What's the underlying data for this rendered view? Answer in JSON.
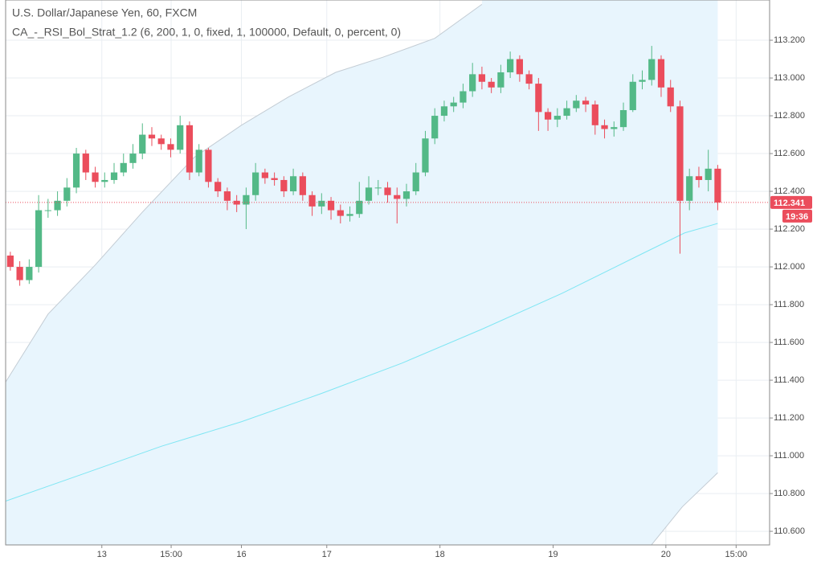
{
  "chart_data": {
    "type": "candlestick",
    "title": "U.S. Dollar/Japanese Yen, 60, FXCM",
    "subtitle": "CA_-_RSI_Bol_Strat_1.2 (6, 200, 1, 0, fixed, 1, 100000, Default, 0, percent, 0)",
    "up_color": "#53b987",
    "down_color": "#eb4d5c",
    "x": [
      1,
      3,
      5,
      7,
      9,
      11,
      13,
      15,
      17,
      19,
      21,
      23,
      25,
      27,
      29,
      31,
      33,
      35,
      37,
      39,
      41,
      43,
      45,
      47,
      49,
      51,
      53,
      55,
      57,
      59,
      61,
      63,
      65,
      67,
      69,
      71,
      73,
      75,
      77,
      79,
      81,
      83,
      85,
      87,
      89,
      91,
      93,
      95,
      97,
      99,
      101,
      103,
      105,
      107,
      109,
      111,
      113,
      115,
      117,
      119,
      121,
      123,
      125,
      127,
      129,
      131,
      133,
      135,
      137,
      139,
      141,
      143,
      145,
      147,
      149,
      151
    ],
    "open": [
      112.06,
      112.0,
      111.93,
      112.0,
      112.3,
      112.3,
      112.35,
      112.42,
      112.6,
      112.5,
      112.45,
      112.46,
      112.5,
      112.55,
      112.6,
      112.7,
      112.68,
      112.65,
      112.62,
      112.75,
      112.5,
      112.62,
      112.45,
      112.4,
      112.35,
      112.33,
      112.38,
      112.5,
      112.47,
      112.46,
      112.4,
      112.48,
      112.38,
      112.32,
      112.35,
      112.3,
      112.27,
      112.28,
      112.35,
      112.42,
      112.42,
      112.38,
      112.36,
      112.4,
      112.5,
      112.68,
      112.8,
      112.85,
      112.87,
      112.93,
      113.02,
      112.98,
      112.95,
      113.03,
      113.1,
      113.02,
      112.97,
      112.82,
      112.78,
      112.8,
      112.84,
      112.88,
      112.86,
      112.75,
      112.73,
      112.74,
      112.83,
      112.98,
      112.99,
      113.1,
      112.95,
      112.85,
      112.35,
      112.48,
      112.46,
      112.52
    ],
    "high": [
      112.08,
      112.03,
      112.04,
      112.38,
      112.36,
      112.4,
      112.47,
      112.63,
      112.62,
      112.53,
      112.5,
      112.55,
      112.6,
      112.65,
      112.76,
      112.74,
      112.7,
      112.68,
      112.8,
      112.77,
      112.65,
      112.63,
      112.47,
      112.42,
      112.38,
      112.42,
      112.55,
      112.52,
      112.5,
      112.48,
      112.52,
      112.5,
      112.4,
      112.39,
      112.37,
      112.33,
      112.32,
      112.45,
      112.48,
      112.46,
      112.45,
      112.42,
      112.44,
      112.55,
      112.72,
      112.84,
      112.88,
      112.9,
      112.97,
      113.08,
      113.06,
      113.0,
      113.07,
      113.14,
      113.12,
      113.04,
      113.0,
      112.84,
      112.84,
      112.88,
      112.91,
      112.9,
      112.88,
      112.78,
      112.77,
      112.87,
      113.02,
      113.04,
      113.17,
      113.12,
      112.99,
      112.88,
      112.52,
      112.53,
      112.62,
      112.54
    ],
    "low": [
      111.98,
      111.9,
      111.91,
      111.97,
      112.26,
      112.27,
      112.32,
      112.39,
      112.46,
      112.42,
      112.42,
      112.44,
      112.48,
      112.52,
      112.57,
      112.64,
      112.62,
      112.58,
      112.6,
      112.46,
      112.48,
      112.42,
      112.37,
      112.3,
      112.29,
      112.2,
      112.35,
      112.44,
      112.43,
      112.37,
      112.38,
      112.35,
      112.27,
      112.28,
      112.25,
      112.23,
      112.24,
      112.26,
      112.33,
      112.38,
      112.34,
      112.23,
      112.32,
      112.38,
      112.48,
      112.65,
      112.77,
      112.82,
      112.84,
      112.9,
      112.94,
      112.92,
      112.92,
      113.0,
      112.98,
      112.94,
      112.72,
      112.72,
      112.74,
      112.78,
      112.82,
      112.82,
      112.7,
      112.68,
      112.69,
      112.72,
      112.82,
      112.94,
      112.96,
      112.9,
      112.82,
      112.07,
      112.3,
      112.42,
      112.4,
      112.3
    ],
    "close": [
      112.0,
      111.93,
      112.0,
      112.3,
      112.3,
      112.35,
      112.42,
      112.6,
      112.5,
      112.45,
      112.46,
      112.5,
      112.55,
      112.6,
      112.7,
      112.68,
      112.65,
      112.62,
      112.75,
      112.5,
      112.62,
      112.45,
      112.4,
      112.35,
      112.33,
      112.38,
      112.5,
      112.47,
      112.46,
      112.4,
      112.48,
      112.38,
      112.32,
      112.35,
      112.3,
      112.27,
      112.28,
      112.35,
      112.42,
      112.42,
      112.38,
      112.36,
      112.4,
      112.5,
      112.68,
      112.8,
      112.85,
      112.87,
      112.93,
      113.02,
      112.98,
      112.95,
      113.03,
      113.1,
      113.02,
      112.97,
      112.82,
      112.78,
      112.8,
      112.84,
      112.88,
      112.86,
      112.75,
      112.73,
      112.74,
      112.83,
      112.98,
      112.99,
      113.1,
      112.95,
      112.85,
      112.35,
      112.48,
      112.46,
      112.52,
      112.341
    ],
    "bands": {
      "fill_color": "#e8f5fd",
      "edge_color": "#c3ccd4",
      "basis_color": "#7fe6f3",
      "upper": {
        "x": [
          0,
          9,
          19,
          29,
          40,
          50,
          60,
          70,
          80,
          91,
          101
        ],
        "values": [
          111.39,
          111.75,
          112.01,
          112.29,
          112.58,
          112.75,
          112.9,
          113.03,
          113.11,
          113.21,
          113.39
        ]
      },
      "lower": {
        "x": [
          137,
          143.5,
          151
        ],
        "values": [
          110.53,
          110.73,
          110.91
        ]
      },
      "basis": {
        "x": [
          0,
          16,
          33,
          50,
          67,
          84,
          101,
          118,
          135,
          144,
          151
        ],
        "values": [
          110.76,
          110.9,
          111.05,
          111.18,
          111.33,
          111.49,
          111.67,
          111.86,
          112.07,
          112.18,
          112.23
        ]
      }
    },
    "last_price": 112.341,
    "countdown": "19:36",
    "xlim": [
      0,
      162
    ],
    "xticks": [
      {
        "value": 20.4,
        "label": "13"
      },
      {
        "value": 35.1,
        "label": "15:00"
      },
      {
        "value": 50,
        "label": "16"
      },
      {
        "value": 68.1,
        "label": "17"
      },
      {
        "value": 92.1,
        "label": "18"
      },
      {
        "value": 116.1,
        "label": "19"
      },
      {
        "value": 140,
        "label": "20"
      },
      {
        "value": 154.9,
        "label": "15:00"
      }
    ],
    "ylim": [
      110.528,
      113.413
    ],
    "yticks": [
      {
        "value": 110.6,
        "label": "110.600"
      },
      {
        "value": 110.8,
        "label": "110.800"
      },
      {
        "value": 111.0,
        "label": "111.000"
      },
      {
        "value": 111.2,
        "label": "111.200"
      },
      {
        "value": 111.4,
        "label": "111.400"
      },
      {
        "value": 111.6,
        "label": "111.600"
      },
      {
        "value": 111.8,
        "label": "111.800"
      },
      {
        "value": 112.0,
        "label": "112.000"
      },
      {
        "value": 112.2,
        "label": "112.200"
      },
      {
        "value": 112.4,
        "label": "112.400"
      },
      {
        "value": 112.6,
        "label": "112.600"
      },
      {
        "value": 112.8,
        "label": "112.800"
      },
      {
        "value": 113.0,
        "label": "113.000"
      },
      {
        "value": 113.2,
        "label": "113.200"
      }
    ],
    "grid": true
  }
}
